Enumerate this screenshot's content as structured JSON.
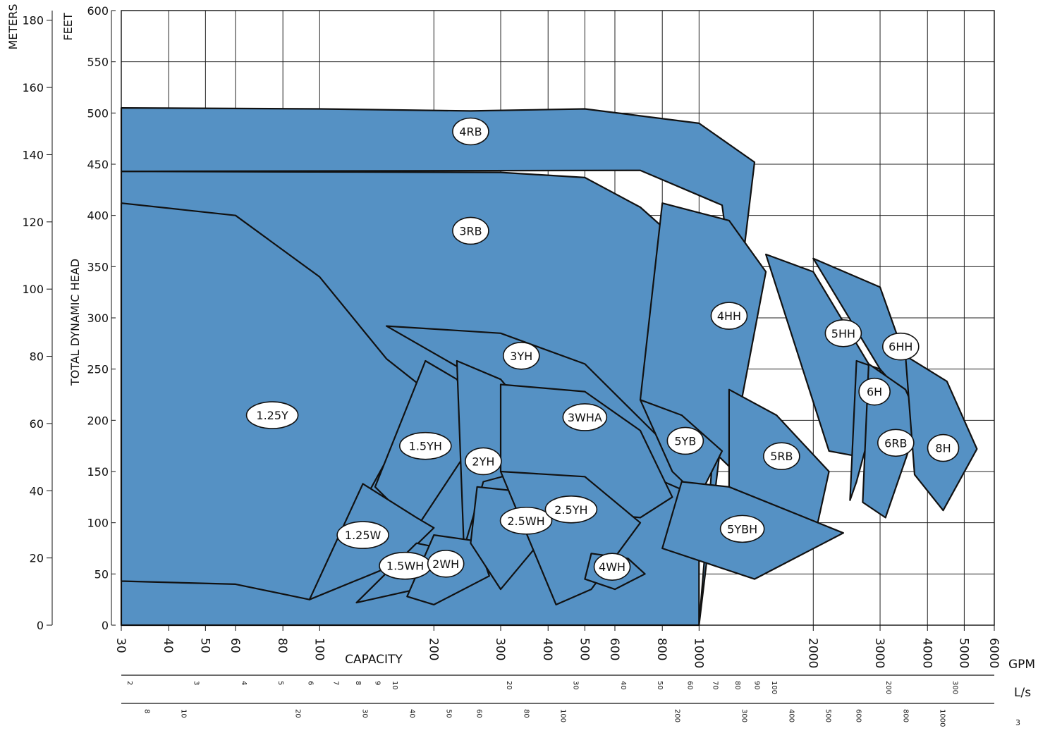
{
  "chart_data": {
    "type": "area",
    "title": "",
    "xlabel": "CAPACITY",
    "ylabel": "TOTAL DYNAMIC HEAD",
    "x_scale": "log",
    "xlim": [
      30,
      6000
    ],
    "ylim_feet": [
      0,
      600
    ],
    "grid": true,
    "x_units": {
      "gpm": "GPM",
      "ls": "L/s",
      "m3h": "3"
    },
    "y_units": {
      "feet": "FEET",
      "meters": "METERS"
    },
    "gpm_ticks": [
      30,
      40,
      50,
      60,
      80,
      100,
      200,
      300,
      400,
      500,
      600,
      800,
      1000,
      2000,
      3000,
      4000,
      5000,
      6000
    ],
    "ls_ticks": [
      2,
      3,
      4,
      5,
      6,
      7,
      8,
      9,
      10,
      20,
      30,
      40,
      50,
      60,
      70,
      80,
      90,
      100,
      200,
      300
    ],
    "m3h_ticks": [
      8,
      10,
      20,
      30,
      40,
      50,
      60,
      80,
      100,
      200,
      300,
      400,
      500,
      600,
      800,
      1000
    ],
    "feet_ticks": [
      0,
      50,
      100,
      150,
      200,
      250,
      300,
      350,
      400,
      450,
      500,
      550,
      600
    ],
    "meter_ticks": [
      20,
      40,
      60,
      80,
      100,
      120,
      140,
      160,
      180
    ],
    "series": [
      {
        "name": "4RB",
        "label_at": [
          250,
          482
        ],
        "points": [
          [
            30,
            505
          ],
          [
            100,
            504
          ],
          [
            250,
            502
          ],
          [
            500,
            504
          ],
          [
            1000,
            490
          ],
          [
            1400,
            452
          ],
          [
            1000,
            0
          ],
          [
            1200,
            360
          ],
          [
            1150,
            410
          ],
          [
            700,
            444
          ],
          [
            30,
            443
          ]
        ]
      },
      {
        "name": "3RB",
        "label_at": [
          250,
          385
        ],
        "points": [
          [
            30,
            443
          ],
          [
            300,
            442
          ],
          [
            500,
            437
          ],
          [
            700,
            408
          ],
          [
            1000,
            357
          ],
          [
            1000,
            0
          ],
          [
            700,
            0
          ],
          [
            500,
            0
          ],
          [
            300,
            0
          ],
          [
            30,
            0
          ]
        ]
      },
      {
        "name": "4HH",
        "label_at": [
          1200,
          302
        ],
        "points": [
          [
            800,
            412
          ],
          [
            1200,
            395
          ],
          [
            1500,
            345
          ],
          [
            1200,
            155
          ],
          [
            900,
            200
          ],
          [
            700,
            220
          ]
        ]
      },
      {
        "name": "5HH",
        "label_at": [
          2400,
          285
        ],
        "points": [
          [
            1500,
            362
          ],
          [
            2000,
            345
          ],
          [
            2800,
            255
          ],
          [
            2600,
            165
          ],
          [
            2200,
            170
          ]
        ]
      },
      {
        "name": "6HH",
        "label_at": [
          3400,
          272
        ],
        "points": [
          [
            2000,
            358
          ],
          [
            3000,
            330
          ],
          [
            3700,
            235
          ],
          [
            3500,
            222
          ],
          [
            3000,
            250
          ]
        ]
      },
      {
        "name": "1.25Y",
        "label_at": [
          75,
          205
        ],
        "points": [
          [
            30,
            412
          ],
          [
            60,
            400
          ],
          [
            100,
            340
          ],
          [
            150,
            260
          ],
          [
            190,
            230
          ],
          [
            94,
            25
          ],
          [
            60,
            40
          ],
          [
            30,
            43
          ]
        ]
      },
      {
        "name": "3YH",
        "label_at": [
          340,
          263
        ],
        "points": [
          [
            150,
            292
          ],
          [
            300,
            285
          ],
          [
            500,
            255
          ],
          [
            800,
            180
          ],
          [
            1000,
            125
          ],
          [
            700,
            150
          ]
        ]
      },
      {
        "name": "1.5YH",
        "label_at": [
          190,
          175
        ],
        "points": [
          [
            190,
            258
          ],
          [
            230,
            240
          ],
          [
            270,
            190
          ],
          [
            240,
            165
          ],
          [
            180,
            95
          ],
          [
            140,
            135
          ]
        ]
      },
      {
        "name": "2YH",
        "label_at": [
          270,
          160
        ],
        "points": [
          [
            230,
            258
          ],
          [
            300,
            240
          ],
          [
            380,
            195
          ],
          [
            340,
            150
          ],
          [
            270,
            140
          ],
          [
            240,
            75
          ]
        ]
      },
      {
        "name": "3WHA",
        "label_at": [
          500,
          203
        ],
        "points": [
          [
            300,
            235
          ],
          [
            500,
            228
          ],
          [
            700,
            190
          ],
          [
            850,
            125
          ],
          [
            700,
            105
          ],
          [
            500,
            110
          ],
          [
            300,
            150
          ]
        ]
      },
      {
        "name": "5YB",
        "label_at": [
          920,
          180
        ],
        "points": [
          [
            700,
            220
          ],
          [
            900,
            205
          ],
          [
            1150,
            170
          ],
          [
            1000,
            125
          ],
          [
            850,
            150
          ]
        ]
      },
      {
        "name": "5RB",
        "label_at": [
          1650,
          165
        ],
        "points": [
          [
            1200,
            230
          ],
          [
            1600,
            205
          ],
          [
            2200,
            150
          ],
          [
            2000,
            80
          ],
          [
            1200,
            135
          ]
        ]
      },
      {
        "name": "6H",
        "label_at": [
          2900,
          228
        ],
        "points": [
          [
            2600,
            258
          ],
          [
            3000,
            250
          ],
          [
            3000,
            225
          ],
          [
            2600,
            140
          ],
          [
            2500,
            122
          ]
        ]
      },
      {
        "name": "6RB",
        "label_at": [
          3300,
          178
        ],
        "points": [
          [
            2800,
            255
          ],
          [
            3500,
            230
          ],
          [
            3800,
            200
          ],
          [
            3100,
            105
          ],
          [
            2700,
            120
          ]
        ]
      },
      {
        "name": "8H",
        "label_at": [
          4400,
          173
        ],
        "points": [
          [
            3500,
            263
          ],
          [
            4500,
            238
          ],
          [
            5400,
            172
          ],
          [
            4400,
            112
          ],
          [
            3700,
            147
          ]
        ]
      },
      {
        "name": "1.25W",
        "label_at": [
          130,
          88
        ],
        "points": [
          [
            130,
            138
          ],
          [
            180,
            105
          ],
          [
            200,
            95
          ],
          [
            160,
            60
          ],
          [
            94,
            25
          ]
        ]
      },
      {
        "name": "1.5WH",
        "label_at": [
          168,
          58
        ],
        "points": [
          [
            180,
            80
          ],
          [
            230,
            72
          ],
          [
            240,
            65
          ],
          [
            180,
            35
          ],
          [
            125,
            22
          ]
        ]
      },
      {
        "name": "2WH",
        "label_at": [
          215,
          60
        ],
        "points": [
          [
            200,
            88
          ],
          [
            260,
            82
          ],
          [
            280,
            48
          ],
          [
            200,
            20
          ],
          [
            170,
            28
          ]
        ]
      },
      {
        "name": "2.5WH",
        "label_at": [
          350,
          102
        ],
        "points": [
          [
            260,
            135
          ],
          [
            350,
            130
          ],
          [
            420,
            100
          ],
          [
            300,
            35
          ],
          [
            250,
            80
          ]
        ]
      },
      {
        "name": "2.5YH",
        "label_at": [
          460,
          113
        ],
        "points": [
          [
            300,
            150
          ],
          [
            500,
            145
          ],
          [
            700,
            100
          ],
          [
            520,
            35
          ],
          [
            420,
            20
          ]
        ]
      },
      {
        "name": "4WH",
        "label_at": [
          590,
          57
        ],
        "points": [
          [
            520,
            70
          ],
          [
            650,
            65
          ],
          [
            720,
            50
          ],
          [
            600,
            35
          ],
          [
            500,
            45
          ]
        ]
      },
      {
        "name": "5YBH",
        "label_at": [
          1300,
          94
        ],
        "points": [
          [
            900,
            140
          ],
          [
            1200,
            135
          ],
          [
            2400,
            90
          ],
          [
            1400,
            45
          ],
          [
            800,
            75
          ]
        ]
      }
    ]
  }
}
